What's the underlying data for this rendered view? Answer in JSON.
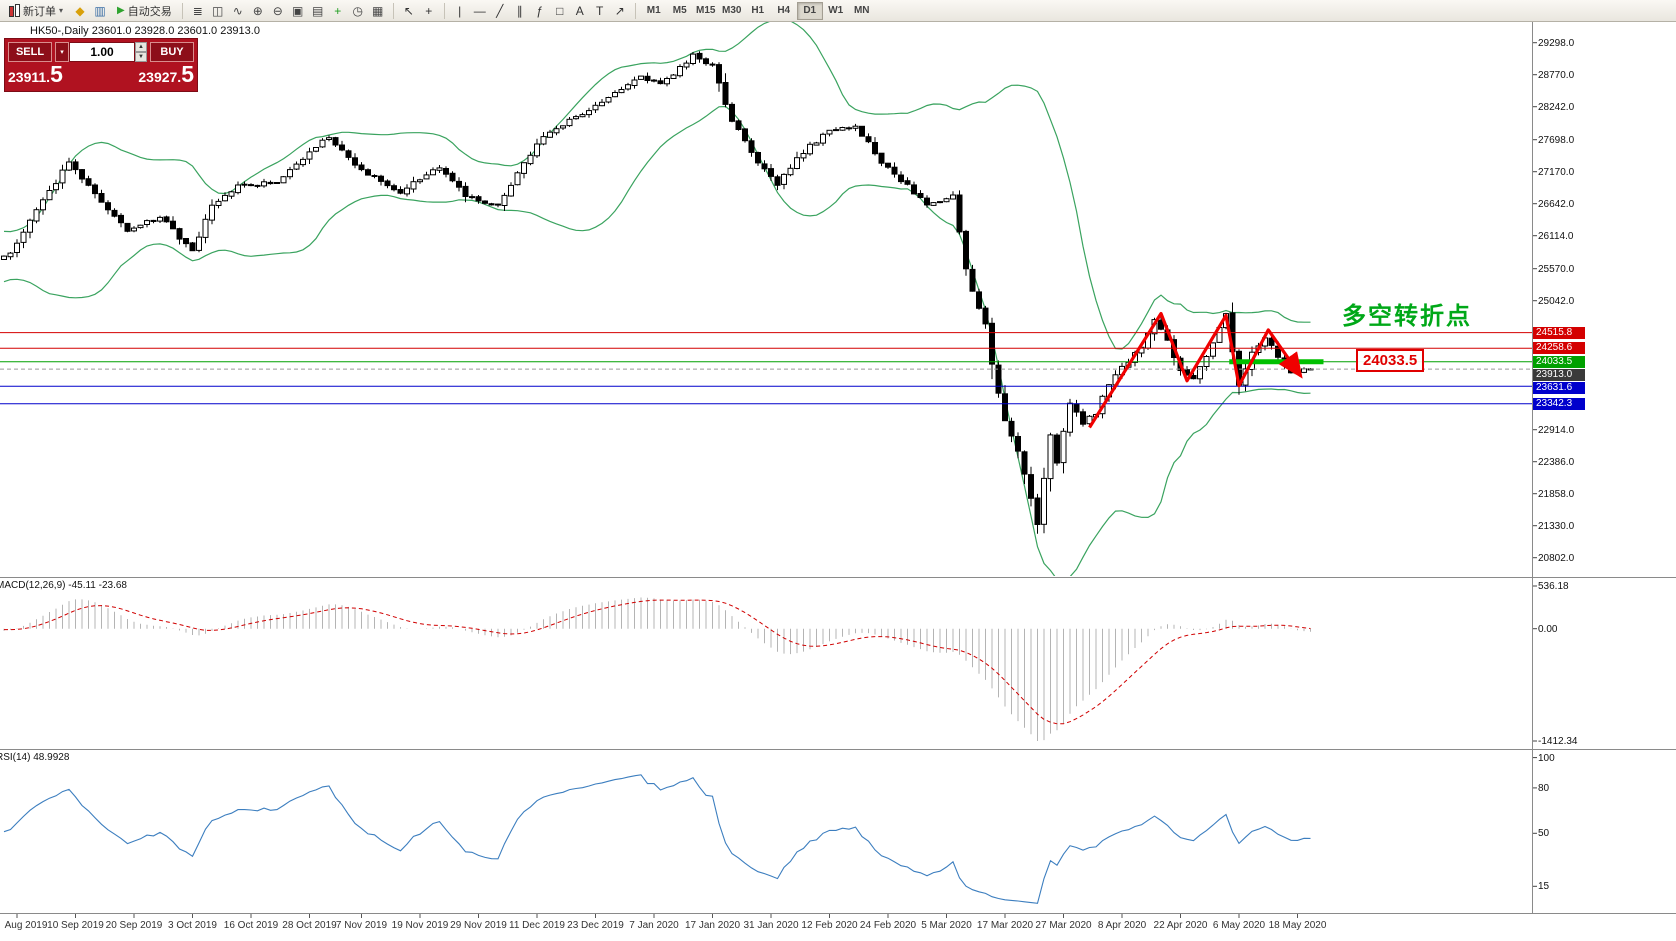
{
  "toolbar": {
    "new_order": {
      "label": "新订单",
      "caret": "▾"
    },
    "autotrade": {
      "label": "自动交易",
      "icon": "▶"
    },
    "icon_buttons_a": [
      {
        "name": "compass-icon",
        "glyph": "◆",
        "color": "#d8a00a"
      },
      {
        "name": "market-watch-icon",
        "glyph": "▥",
        "color": "#3a6ea5"
      }
    ],
    "icon_buttons_b": [
      {
        "name": "bars-chart-icon",
        "glyph": "≣",
        "color": "#444444"
      },
      {
        "name": "candlestick-chart-icon",
        "glyph": "◫",
        "color": "#444444"
      },
      {
        "name": "line-chart-icon",
        "glyph": "∿",
        "color": "#444444"
      },
      {
        "name": "zoom-in-icon",
        "glyph": "⊕",
        "color": "#444444"
      },
      {
        "name": "zoom-out-icon",
        "glyph": "⊖",
        "color": "#444444"
      },
      {
        "name": "tile-windows-icon",
        "glyph": "▣",
        "color": "#444444"
      },
      {
        "name": "new-chart-icon",
        "glyph": "▤",
        "color": "#444444"
      },
      {
        "name": "indicators-icon",
        "glyph": "+",
        "color": "#1f9e1f"
      },
      {
        "name": "periods-icon",
        "glyph": "◷",
        "color": "#444444"
      },
      {
        "name": "templates-icon",
        "glyph": "▦",
        "color": "#444444"
      }
    ],
    "icon_buttons_c": [
      {
        "name": "cursor-icon",
        "glyph": "↖",
        "color": "#333333"
      },
      {
        "name": "crosshair-icon",
        "glyph": "+",
        "color": "#333333"
      }
    ],
    "icon_buttons_d": [
      {
        "name": "vertical-line-icon",
        "glyph": "|",
        "color": "#333333"
      },
      {
        "name": "horizontal-line-icon",
        "glyph": "—",
        "color": "#333333"
      },
      {
        "name": "trendline-icon",
        "glyph": "╱",
        "color": "#333333"
      },
      {
        "name": "channel-icon",
        "glyph": "∥",
        "color": "#333333"
      },
      {
        "name": "fibonacci-icon",
        "glyph": "ƒ",
        "color": "#333333"
      },
      {
        "name": "shapes-icon",
        "glyph": "□",
        "color": "#333333"
      },
      {
        "name": "text-icon",
        "glyph": "A",
        "color": "#333333"
      },
      {
        "name": "label-icon",
        "glyph": "T",
        "color": "#333333"
      },
      {
        "name": "arrows-icon",
        "glyph": "↗",
        "color": "#333333"
      }
    ],
    "timeframes": [
      "M1",
      "M5",
      "M15",
      "M30",
      "H1",
      "H4",
      "D1",
      "W1",
      "MN"
    ],
    "active_timeframe": "D1"
  },
  "quote_panel": {
    "sell_label": "SELL",
    "buy_label": "BUY",
    "volume": "1.00",
    "sell_price_main": "23911.",
    "sell_price_big": "5",
    "buy_price_main": "23927.",
    "buy_price_big": "5"
  },
  "chart": {
    "title": "HK50-,Daily  23601.0 23928.0 23601.0 23913.0",
    "annotation": "多空转折点",
    "price_tag": "24033.5",
    "macd_label": "MACD(12,26,9) -45.11 -23.68",
    "rsi_label": "RSI(14) 48.9928"
  },
  "chart_data": {
    "type": "candlestick",
    "symbol": "HK50",
    "timeframe": "Daily",
    "ohlc_title": {
      "open": 23601.0,
      "high": 23928.0,
      "low": 23601.0,
      "close": 23913.0
    },
    "candle_count": 202,
    "ylim": [
      20500,
      29640
    ],
    "price_axis_labels": [
      "29298.0",
      "28770.0",
      "28242.0",
      "27698.0",
      "27170.0",
      "26642.0",
      "26114.0",
      "25570.0",
      "25042.0",
      "22914.0",
      "22386.0",
      "21858.0",
      "21330.0",
      "20802.0"
    ],
    "anchors": [
      [
        0,
        25780
      ],
      [
        1,
        25850
      ],
      [
        10,
        27340
      ],
      [
        19,
        26180
      ],
      [
        24,
        26430
      ],
      [
        29,
        25850
      ],
      [
        32,
        26600
      ],
      [
        36,
        26930
      ],
      [
        42,
        27000
      ],
      [
        50,
        27760
      ],
      [
        55,
        27180
      ],
      [
        61,
        26840
      ],
      [
        67,
        27260
      ],
      [
        71,
        26760
      ],
      [
        76,
        26600
      ],
      [
        80,
        27300
      ],
      [
        83,
        27760
      ],
      [
        87,
        28000
      ],
      [
        90,
        28170
      ],
      [
        93,
        28420
      ],
      [
        98,
        28750
      ],
      [
        101,
        28590
      ],
      [
        106,
        29090
      ],
      [
        109,
        28920
      ],
      [
        112,
        28000
      ],
      [
        116,
        27340
      ],
      [
        119,
        26930
      ],
      [
        122,
        27420
      ],
      [
        127,
        27840
      ],
      [
        131,
        27920
      ],
      [
        135,
        27340
      ],
      [
        139,
        26930
      ],
      [
        142,
        26600
      ],
      [
        146,
        26760
      ],
      [
        148,
        25600
      ],
      [
        149,
        25180
      ],
      [
        151,
        24690
      ],
      [
        152,
        24020
      ],
      [
        154,
        23030
      ],
      [
        156,
        22530
      ],
      [
        157,
        22200
      ],
      [
        159,
        21370
      ],
      [
        161,
        22860
      ],
      [
        162,
        22360
      ],
      [
        164,
        23360
      ],
      [
        166,
        23030
      ],
      [
        168,
        23200
      ],
      [
        170,
        23690
      ],
      [
        172,
        23940
      ],
      [
        175,
        24270
      ],
      [
        177,
        24700
      ],
      [
        179,
        24400
      ],
      [
        181,
        23860
      ],
      [
        183,
        23770
      ],
      [
        186,
        24350
      ],
      [
        188,
        24800
      ],
      [
        190,
        23640
      ],
      [
        192,
        24190
      ],
      [
        194,
        24450
      ],
      [
        196,
        24100
      ],
      [
        198,
        23860
      ],
      [
        201,
        23913
      ]
    ],
    "bollinger": {
      "period": 20,
      "deviation": 2,
      "color": "#3aa35f"
    },
    "hlines": [
      {
        "price": 24515.8,
        "color": "#d40000",
        "label": "24515.8",
        "badge": "#d40000",
        "dash": false
      },
      {
        "price": 24258.6,
        "color": "#d40000",
        "label": "24258.6",
        "badge": "#d40000",
        "dash": false
      },
      {
        "price": 24033.5,
        "color": "#00a000",
        "label": "24033.5",
        "badge": "#00a000",
        "dash": false
      },
      {
        "price": 23913.0,
        "color": "#999999",
        "label": "23913.0",
        "badge": "#3a3a3a",
        "dash": true
      },
      {
        "price": 23631.6,
        "color": "#0000cc",
        "label": "23631.6",
        "badge": "#0000cc",
        "dash": false
      },
      {
        "price": 23342.3,
        "color": "#0000cc",
        "label": "23342.3",
        "badge": "#0000cc",
        "dash": false
      }
    ],
    "highlight_segment": {
      "price": 24033.5,
      "from": 188.5,
      "to": 203,
      "color": "#00c000",
      "width": 5
    },
    "zigzag": {
      "color": "#f00000",
      "points": [
        [
          167,
          22950
        ],
        [
          178,
          24830
        ],
        [
          182,
          23720
        ],
        [
          188,
          24800
        ],
        [
          190,
          23640
        ],
        [
          194.5,
          24560
        ],
        [
          199.5,
          23800
        ]
      ]
    },
    "macd": {
      "params": "12,26,9",
      "values": [
        -45.11,
        -23.68
      ],
      "ylim": [
        -1501,
        637
      ],
      "axis_labels": [
        "536.18",
        "0.00",
        "-1412.34"
      ],
      "hist_color": "#b4b4b4",
      "signal_color": "#d00000",
      "normalize_min": -1412.34
    },
    "rsi": {
      "period": 14,
      "value": 48.9928,
      "ylim": [
        -2,
        105
      ],
      "axis_labels": [
        "100",
        "80",
        "50",
        "15"
      ],
      "color": "#3c7ebf"
    },
    "dates": [
      {
        "t": "Aug 2019",
        "i": 2
      },
      {
        "t": "10 Sep 2019",
        "i": 11
      },
      {
        "t": "20 Sep 2019",
        "i": 20
      },
      {
        "t": "3 Oct 2019",
        "i": 29
      },
      {
        "t": "16 Oct 2019",
        "i": 38
      },
      {
        "t": "28 Oct 2019",
        "i": 47
      },
      {
        "t": "7 Nov 2019",
        "i": 55
      },
      {
        "t": "19 Nov 2019",
        "i": 64
      },
      {
        "t": "29 Nov 2019",
        "i": 73
      },
      {
        "t": "11 Dec 2019",
        "i": 82
      },
      {
        "t": "23 Dec 2019",
        "i": 91
      },
      {
        "t": "7 Jan 2020",
        "i": 100
      },
      {
        "t": "17 Jan 2020",
        "i": 109
      },
      {
        "t": "31 Jan 2020",
        "i": 118
      },
      {
        "t": "12 Feb 2020",
        "i": 127
      },
      {
        "t": "24 Feb 2020",
        "i": 136
      },
      {
        "t": "5 Mar 2020",
        "i": 145
      },
      {
        "t": "17 Mar 2020",
        "i": 154
      },
      {
        "t": "27 Mar 2020",
        "i": 163
      },
      {
        "t": "8 Apr 2020",
        "i": 172
      },
      {
        "t": "22 Apr 2020",
        "i": 181
      },
      {
        "t": "6 May 2020",
        "i": 190
      },
      {
        "t": "18 May 2020",
        "i": 199
      }
    ]
  }
}
